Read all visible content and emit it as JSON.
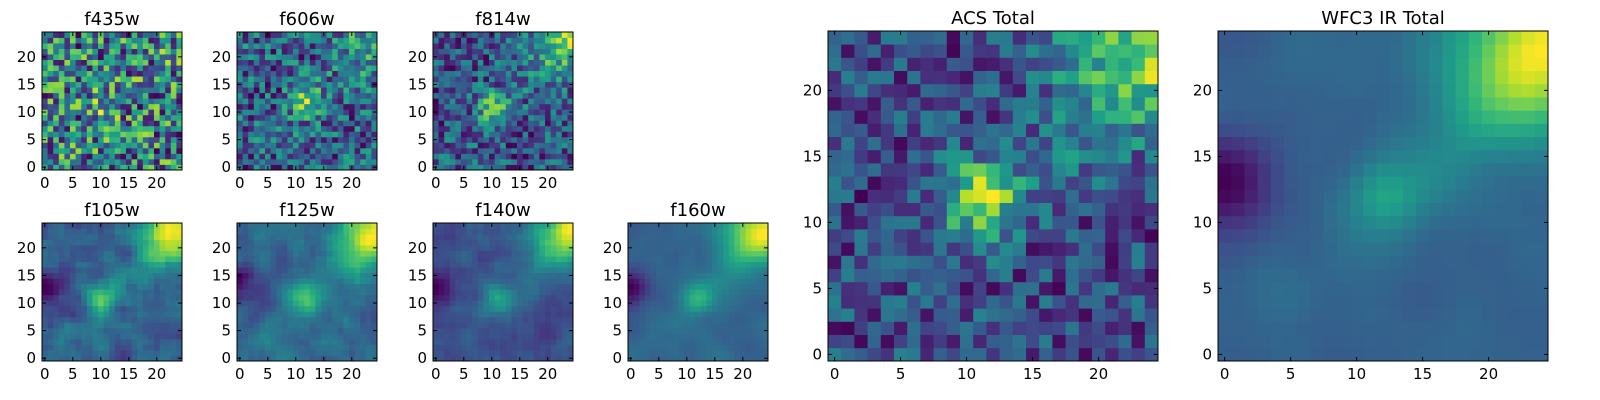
{
  "chart_data": [
    {
      "type": "heatmap",
      "title": "f435w",
      "xticks": [
        "0",
        "5",
        "10",
        "15",
        "20"
      ],
      "yticks": [
        "0",
        "5",
        "10",
        "15",
        "20"
      ],
      "xlim": [
        -0.5,
        24.5
      ],
      "ylim": [
        -0.5,
        24.5
      ],
      "grid": false,
      "colormap": "viridis"
    },
    {
      "type": "heatmap",
      "title": "f606w",
      "xticks": [
        "0",
        "5",
        "10",
        "15",
        "20"
      ],
      "yticks": [
        "0",
        "5",
        "10",
        "15",
        "20"
      ],
      "xlim": [
        -0.5,
        24.5
      ],
      "ylim": [
        -0.5,
        24.5
      ],
      "grid": false,
      "colormap": "viridis"
    },
    {
      "type": "heatmap",
      "title": "f814w",
      "xticks": [
        "0",
        "5",
        "10",
        "15",
        "20"
      ],
      "yticks": [
        "0",
        "5",
        "10",
        "15",
        "20"
      ],
      "xlim": [
        -0.5,
        24.5
      ],
      "ylim": [
        -0.5,
        24.5
      ],
      "grid": false,
      "colormap": "viridis"
    },
    {
      "type": "heatmap",
      "title": "f105w",
      "xticks": [
        "0",
        "5",
        "10",
        "15",
        "20"
      ],
      "yticks": [
        "0",
        "5",
        "10",
        "15",
        "20"
      ],
      "xlim": [
        -0.5,
        24.5
      ],
      "ylim": [
        -0.5,
        24.5
      ],
      "grid": false,
      "colormap": "viridis"
    },
    {
      "type": "heatmap",
      "title": "f125w",
      "xticks": [
        "0",
        "5",
        "10",
        "15",
        "20"
      ],
      "yticks": [
        "0",
        "5",
        "10",
        "15",
        "20"
      ],
      "xlim": [
        -0.5,
        24.5
      ],
      "ylim": [
        -0.5,
        24.5
      ],
      "grid": false,
      "colormap": "viridis"
    },
    {
      "type": "heatmap",
      "title": "f140w",
      "xticks": [
        "0",
        "5",
        "10",
        "15",
        "20"
      ],
      "yticks": [
        "0",
        "5",
        "10",
        "15",
        "20"
      ],
      "xlim": [
        -0.5,
        24.5
      ],
      "ylim": [
        -0.5,
        24.5
      ],
      "grid": false,
      "colormap": "viridis"
    },
    {
      "type": "heatmap",
      "title": "f160w",
      "xticks": [
        "0",
        "5",
        "10",
        "15",
        "20"
      ],
      "yticks": [
        "0",
        "5",
        "10",
        "15",
        "20"
      ],
      "xlim": [
        -0.5,
        24.5
      ],
      "ylim": [
        -0.5,
        24.5
      ],
      "grid": false,
      "colormap": "viridis"
    },
    {
      "type": "heatmap",
      "title": "ACS Total",
      "xticks": [
        "0",
        "5",
        "10",
        "15",
        "20"
      ],
      "yticks": [
        "0",
        "5",
        "10",
        "15",
        "20"
      ],
      "xlim": [
        -0.5,
        24.5
      ],
      "ylim": [
        -0.5,
        24.5
      ],
      "grid": false,
      "colormap": "viridis"
    },
    {
      "type": "heatmap",
      "title": "WFC3 IR Total",
      "xticks": [
        "0",
        "5",
        "10",
        "15",
        "20"
      ],
      "yticks": [
        "0",
        "5",
        "10",
        "15",
        "20"
      ],
      "xlim": [
        -0.5,
        24.5
      ],
      "ylim": [
        -0.5,
        24.5
      ],
      "grid": false,
      "colormap": "viridis"
    }
  ]
}
